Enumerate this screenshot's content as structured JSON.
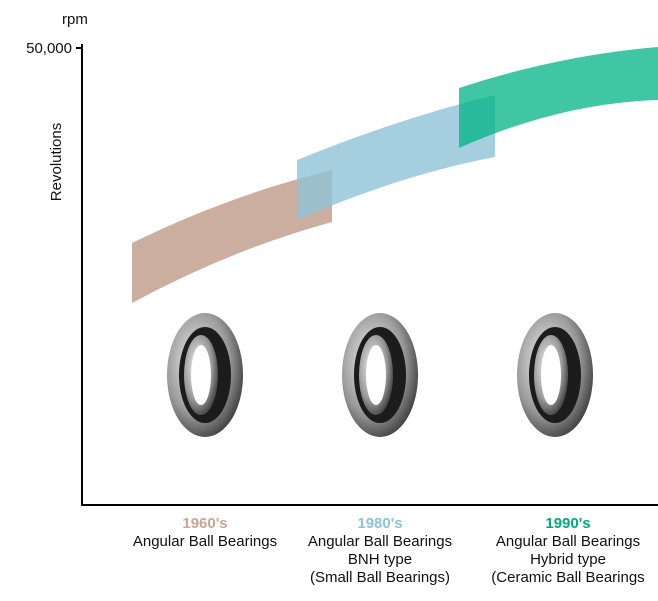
{
  "axis": {
    "unit": "rpm",
    "tick": "50,000",
    "label": "Revolutions"
  },
  "eras": [
    {
      "year": "1960's",
      "lines": [
        "Angular Ball Bearings"
      ]
    },
    {
      "year": "1980's",
      "lines": [
        "Angular Ball Bearings",
        "BNH type",
        "(Small Ball Bearings)"
      ]
    },
    {
      "year": "1990's",
      "lines": [
        "Angular Ball Bearings",
        "Hybrid type",
        "(Ceramic Ball Bearings"
      ]
    }
  ]
}
